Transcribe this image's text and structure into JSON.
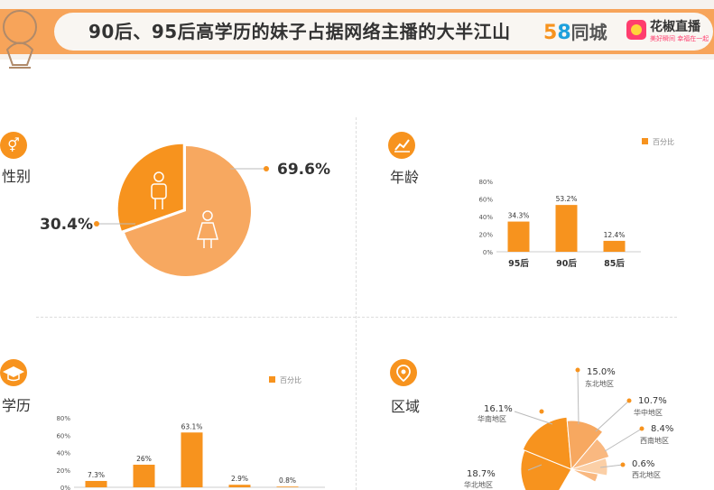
{
  "header": {
    "title": "90后、95后高学历的妹子占据网络主播的大半江山",
    "logo58_num1": "5",
    "logo58_num2": "8",
    "logo58_city": "同城",
    "huajiao_name": "花椒直播",
    "huajiao_sub": "美好瞬间 幸福在一起"
  },
  "sections": {
    "gender": {
      "label": "性别",
      "icon": "gender-icon"
    },
    "age": {
      "label": "年龄",
      "icon": "chart-icon"
    },
    "education": {
      "label": "学历",
      "icon": "graduation-cap-icon"
    },
    "region": {
      "label": "区域",
      "icon": "location-pin-icon"
    }
  },
  "chart_data": [
    {
      "type": "pie",
      "id": "gender",
      "labels": [
        "",
        ""
      ],
      "values": [
        69.6,
        30.4
      ],
      "value_labels": [
        "69.6%",
        "30.4%"
      ],
      "icons": [
        "female-icon",
        "male-icon"
      ],
      "colors": [
        "#f7a860",
        "#f7931e"
      ]
    },
    {
      "type": "bar",
      "id": "age",
      "legend": "百分比",
      "categories": [
        "95后",
        "90后",
        "85后"
      ],
      "values": [
        34.3,
        53.2,
        12.4
      ],
      "value_labels": [
        "34.3%",
        "53.2%",
        "12.4%"
      ],
      "yticks": [
        "0%",
        "20%",
        "40%",
        "60%",
        "80%"
      ],
      "ylim": [
        0,
        80
      ],
      "color": "#f7931e"
    },
    {
      "type": "bar",
      "id": "education",
      "legend": "百分比",
      "values": [
        7.3,
        26,
        63.1,
        2.9,
        0.8
      ],
      "value_labels": [
        "7.3%",
        "26%",
        "63.1%",
        "2.9%",
        "0.8%"
      ],
      "yticks": [
        "0%",
        "20%",
        "40%",
        "60%",
        "80%"
      ],
      "ylim": [
        0,
        80
      ],
      "color": "#f7931e"
    },
    {
      "type": "pie",
      "id": "region",
      "labels": [
        "华北地区",
        "华南地区",
        "东北地区",
        "华中地区",
        "西南地区",
        "西北地区"
      ],
      "values": [
        18.7,
        16.1,
        15.0,
        10.7,
        8.4,
        0.6
      ],
      "value_labels": [
        "18.7%",
        "16.1%",
        "15.0%",
        "10.7%",
        "8.4%",
        "0.6%"
      ],
      "colors": [
        "#f7931e",
        "#f7931e",
        "#f7a860",
        "#f9b880",
        "#fbcfa6",
        "#f9b880"
      ]
    }
  ]
}
